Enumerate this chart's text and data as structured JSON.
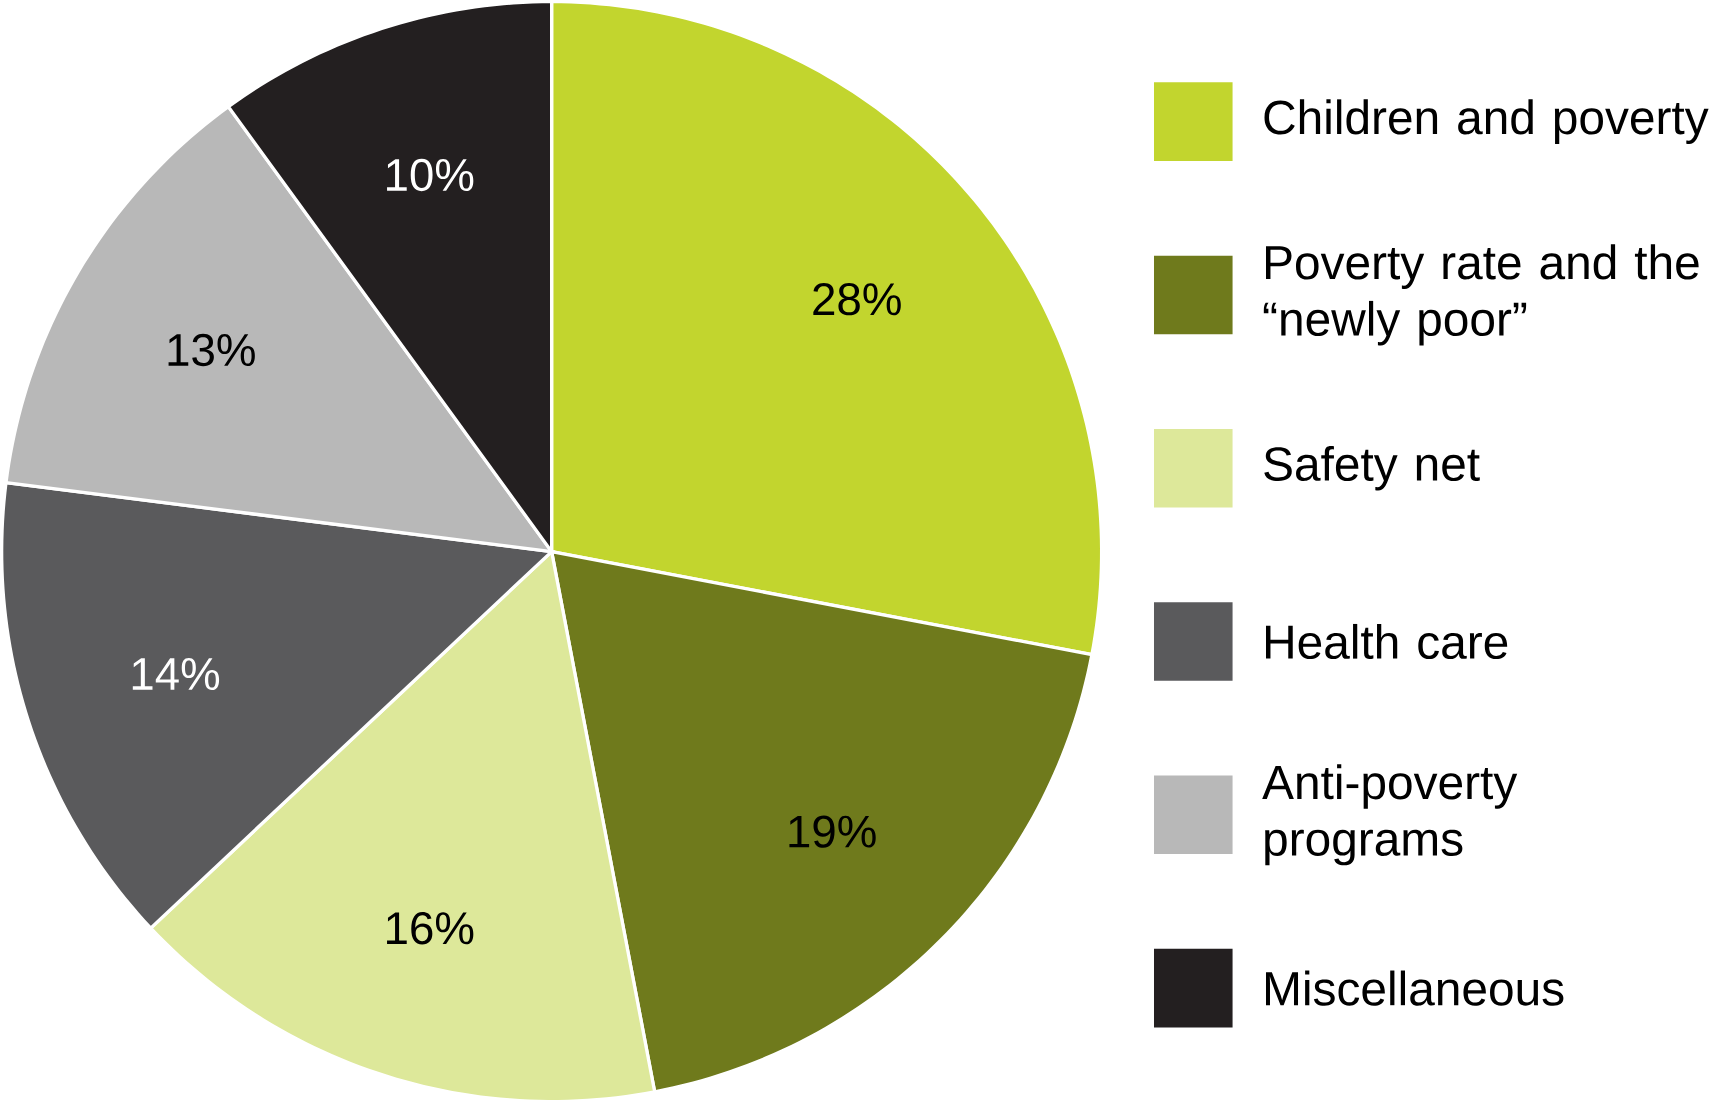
{
  "chart_data": {
    "type": "pie",
    "categories": [
      "Children and poverty",
      "Poverty rate and the “newly poor”",
      "Safety net",
      "Health care",
      "Anti-poverty programs",
      "Miscellaneous"
    ],
    "values": [
      28,
      19,
      16,
      14,
      13,
      10
    ],
    "value_labels": [
      "28%",
      "19%",
      "16%",
      "14%",
      "13%",
      "10%"
    ],
    "colors": [
      "#c2d52e",
      "#6f7a1c",
      "#dde89a",
      "#5a5a5c",
      "#b8b8b8",
      "#231f20"
    ],
    "legend": "right"
  }
}
